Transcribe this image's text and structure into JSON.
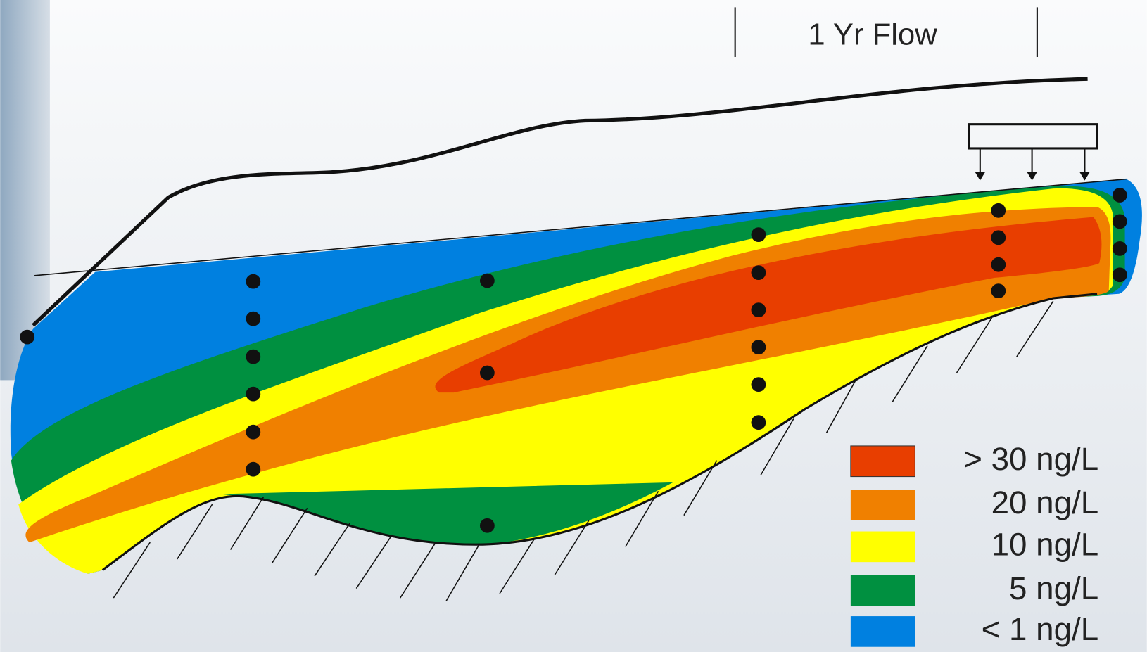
{
  "flow_label": "1 Yr Flow",
  "legend": [
    {
      "label": "> 30 ng/L",
      "color": "#e83e00"
    },
    {
      "label": "20 ng/L",
      "color": "#f08000"
    },
    {
      "label": "10 ng/L",
      "color": "#ffff00"
    },
    {
      "label": "5 ng/L",
      "color": "#009040"
    },
    {
      "label": "< 1 ng/L",
      "color": "#0080e0"
    }
  ]
}
